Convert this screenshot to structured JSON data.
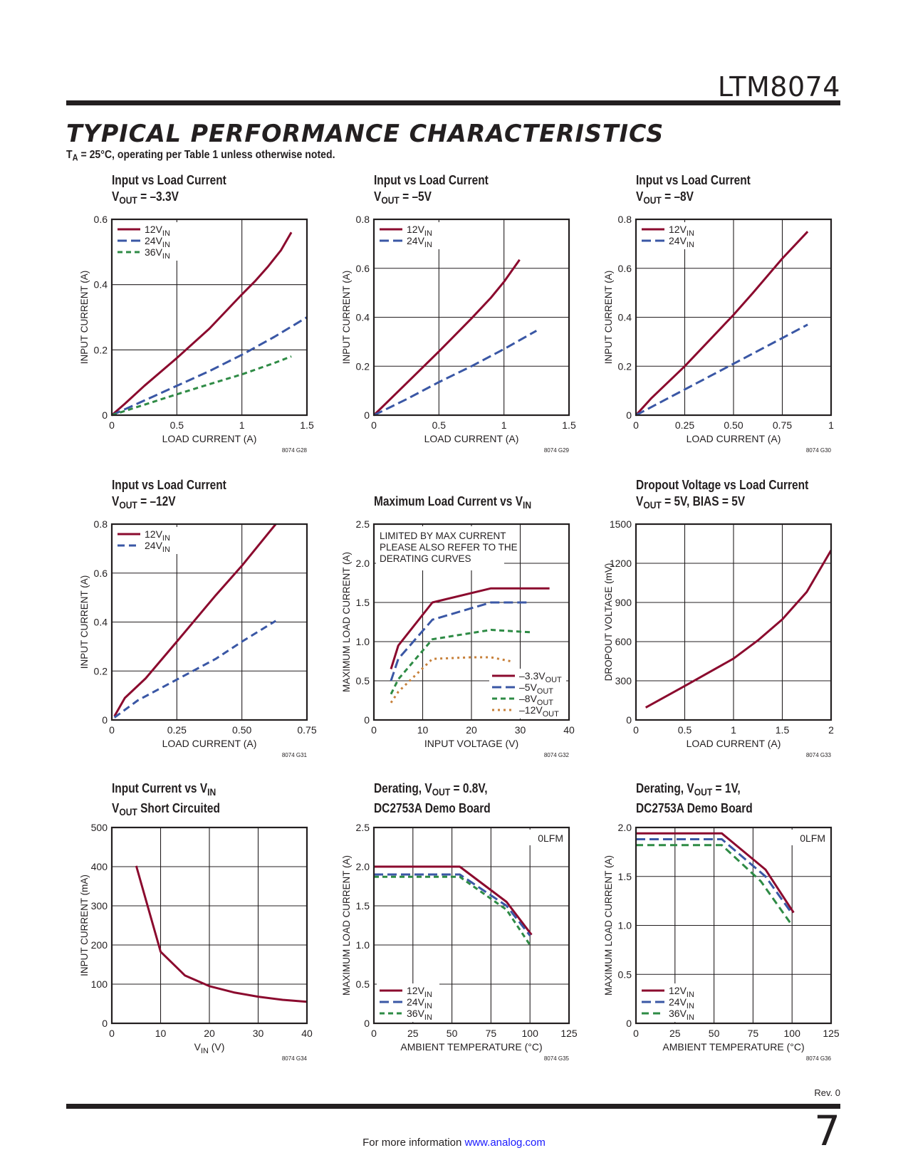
{
  "header": {
    "part_number": "LTM8074",
    "section_title": "TYPICAL PERFORMANCE CHARACTERISTICS",
    "conditions_prefix": "T",
    "conditions_sub": "A",
    "conditions_rest": " = 25°C, operating per Table 1 unless otherwise noted."
  },
  "footer": {
    "rev": "Rev. 0",
    "page_number": "7",
    "info_text": "For more information",
    "info_link": "www.analog.com"
  },
  "colors": {
    "red": "#8b0a2e",
    "blue": "#3a57a5",
    "green": "#2e8b45",
    "orange": "#c7803a",
    "ink": "#231f20"
  },
  "chart_data": [
    {
      "id": "g28",
      "type": "line",
      "title_lines": [
        [
          {
            "t": "Input vs Load Current"
          }
        ],
        [
          {
            "t": "V"
          },
          {
            "t": "OUT",
            "sub": true
          },
          {
            "t": " = –3.3V"
          }
        ]
      ],
      "xlabel": [
        {
          "t": "LOAD CURRENT (A)"
        }
      ],
      "ylabel": "INPUT CURRENT (A)",
      "xlim": [
        0,
        1.5
      ],
      "ylim": [
        0,
        0.6
      ],
      "xticks": [
        0,
        0.5,
        1,
        1.5
      ],
      "xtick_labels": [
        "0",
        "0.5",
        "1",
        "1.5"
      ],
      "yticks": [
        0,
        0.2,
        0.4,
        0.6
      ],
      "ytick_labels": [
        "0",
        "0.2",
        "0.4",
        "0.6"
      ],
      "grid": true,
      "legend_position": "top-left",
      "figure_code": "8074 G28",
      "series": [
        {
          "name": "12V",
          "sub": "IN",
          "color": "red",
          "dash": "solid",
          "x": [
            0,
            0.1,
            0.25,
            0.5,
            0.75,
            1.0,
            1.1,
            1.2,
            1.3,
            1.38
          ],
          "y": [
            0,
            0.035,
            0.09,
            0.175,
            0.265,
            0.37,
            0.41,
            0.455,
            0.505,
            0.56
          ]
        },
        {
          "name": "24V",
          "sub": "IN",
          "color": "blue",
          "dash": "long",
          "x": [
            0,
            0.25,
            0.5,
            0.75,
            1.0,
            1.25,
            1.5
          ],
          "y": [
            0,
            0.045,
            0.09,
            0.135,
            0.185,
            0.24,
            0.3
          ]
        },
        {
          "name": "36V",
          "sub": "IN",
          "color": "green",
          "dash": "short",
          "x": [
            0,
            0.25,
            0.5,
            0.75,
            1.0,
            1.25,
            1.38
          ],
          "y": [
            0,
            0.032,
            0.064,
            0.095,
            0.125,
            0.16,
            0.18
          ]
        }
      ]
    },
    {
      "id": "g29",
      "type": "line",
      "title_lines": [
        [
          {
            "t": "Input vs Load Current"
          }
        ],
        [
          {
            "t": "V"
          },
          {
            "t": "OUT",
            "sub": true
          },
          {
            "t": " = –5V"
          }
        ]
      ],
      "xlabel": [
        {
          "t": "LOAD CURRENT (A)"
        }
      ],
      "ylabel": "INPUT CURRENT (A)",
      "xlim": [
        0,
        1.5
      ],
      "ylim": [
        0,
        0.8
      ],
      "xticks": [
        0,
        0.5,
        1,
        1.5
      ],
      "xtick_labels": [
        "0",
        "0.5",
        "1",
        "1.5"
      ],
      "yticks": [
        0,
        0.2,
        0.4,
        0.6,
        0.8
      ],
      "ytick_labels": [
        "0",
        "0.2",
        "0.4",
        "0.6",
        "0.8"
      ],
      "grid": true,
      "legend_position": "top-left",
      "figure_code": "8074 G29",
      "series": [
        {
          "name": "12V",
          "sub": "IN",
          "color": "red",
          "dash": "solid",
          "x": [
            0,
            0.25,
            0.5,
            0.75,
            0.9,
            1.0,
            1.12
          ],
          "y": [
            0,
            0.13,
            0.26,
            0.395,
            0.48,
            0.545,
            0.635
          ]
        },
        {
          "name": "24V",
          "sub": "IN",
          "color": "blue",
          "dash": "long",
          "x": [
            0,
            0.25,
            0.5,
            0.75,
            1.0,
            1.25
          ],
          "y": [
            0,
            0.065,
            0.135,
            0.2,
            0.27,
            0.345
          ]
        }
      ]
    },
    {
      "id": "g30",
      "type": "line",
      "title_lines": [
        [
          {
            "t": "Input vs Load Current"
          }
        ],
        [
          {
            "t": "V"
          },
          {
            "t": "OUT",
            "sub": true
          },
          {
            "t": " = –8V"
          }
        ]
      ],
      "xlabel": [
        {
          "t": "LOAD CURRENT (A)"
        }
      ],
      "ylabel": "INPUT CURRENT (A)",
      "xlim": [
        0,
        1
      ],
      "ylim": [
        0,
        0.8
      ],
      "xticks": [
        0,
        0.25,
        0.5,
        0.75,
        1
      ],
      "xtick_labels": [
        "0",
        "0.25",
        "0.50",
        "0.75",
        "1"
      ],
      "yticks": [
        0,
        0.2,
        0.4,
        0.6,
        0.8
      ],
      "ytick_labels": [
        "0",
        "0.2",
        "0.4",
        "0.6",
        "0.8"
      ],
      "grid": true,
      "legend_position": "top-left",
      "figure_code": "8074 G30",
      "series": [
        {
          "name": "12V",
          "sub": "IN",
          "color": "red",
          "dash": "solid",
          "x": [
            0,
            0.08,
            0.25,
            0.5,
            0.6,
            0.75,
            0.88
          ],
          "y": [
            0,
            0.07,
            0.2,
            0.41,
            0.5,
            0.64,
            0.75
          ]
        },
        {
          "name": "24V",
          "sub": "IN",
          "color": "blue",
          "dash": "long",
          "x": [
            0,
            0.25,
            0.5,
            0.75,
            0.88
          ],
          "y": [
            0,
            0.105,
            0.21,
            0.315,
            0.37
          ]
        }
      ]
    },
    {
      "id": "g31",
      "type": "line",
      "title_lines": [
        [
          {
            "t": "Input vs Load Current"
          }
        ],
        [
          {
            "t": "V"
          },
          {
            "t": "OUT",
            "sub": true
          },
          {
            "t": " = –12V"
          }
        ]
      ],
      "xlabel": [
        {
          "t": "LOAD CURRENT (A)"
        }
      ],
      "ylabel": "INPUT CURRENT (A)",
      "xlim": [
        0,
        0.75
      ],
      "ylim": [
        0,
        0.8
      ],
      "xticks": [
        0,
        0.25,
        0.5,
        0.75
      ],
      "xtick_labels": [
        "0",
        "0.25",
        "0.50",
        "0.75"
      ],
      "yticks": [
        0,
        0.2,
        0.4,
        0.6,
        0.8
      ],
      "ytick_labels": [
        "0",
        "0.2",
        "0.4",
        "0.6",
        "0.8"
      ],
      "grid": true,
      "legend_position": "top-left",
      "figure_code": "8074 G31",
      "series": [
        {
          "name": "12V",
          "sub": "IN",
          "color": "red",
          "dash": "solid",
          "x": [
            0.01,
            0.05,
            0.13,
            0.25,
            0.4,
            0.5,
            0.63
          ],
          "y": [
            0.015,
            0.09,
            0.17,
            0.32,
            0.51,
            0.63,
            0.8
          ]
        },
        {
          "name": "24V",
          "sub": "IN",
          "color": "blue",
          "dash": "medium",
          "x": [
            0.01,
            0.1,
            0.25,
            0.4,
            0.5,
            0.63
          ],
          "y": [
            0.01,
            0.08,
            0.165,
            0.25,
            0.32,
            0.405
          ]
        }
      ]
    },
    {
      "id": "g32",
      "type": "line",
      "title_lines": [
        [
          {
            "t": ""
          }
        ],
        [
          {
            "t": "Maximum Load Current vs V"
          },
          {
            "t": "IN",
            "sub": true
          }
        ]
      ],
      "xlabel": [
        {
          "t": "INPUT VOLTAGE (V)"
        }
      ],
      "ylabel": "MAXIMUM LOAD CURRENT (A)",
      "xlim": [
        0,
        40
      ],
      "ylim": [
        0,
        2.5
      ],
      "xticks": [
        0,
        10,
        20,
        30,
        40
      ],
      "xtick_labels": [
        "0",
        "10",
        "20",
        "30",
        "40"
      ],
      "yticks": [
        0,
        0.5,
        1.0,
        1.5,
        2.0,
        2.5
      ],
      "ytick_labels": [
        "0",
        "0.5",
        "1.0",
        "1.5",
        "2.0",
        "2.5"
      ],
      "grid": true,
      "legend_position": "bottom-right",
      "annotation_lines": [
        "LIMITED BY MAX CURRENT",
        "PLEASE ALSO REFER TO THE",
        "DERATING CURVES"
      ],
      "figure_code": "8074 G32",
      "series": [
        {
          "name": "–3.3V",
          "sub": "OUT",
          "color": "red",
          "dash": "solid",
          "x": [
            3.5,
            5,
            12,
            24,
            36
          ],
          "y": [
            0.65,
            0.95,
            1.5,
            1.68,
            1.68
          ]
        },
        {
          "name": "–5V",
          "sub": "OUT",
          "color": "blue",
          "dash": "long",
          "x": [
            3.5,
            5,
            12,
            24,
            32
          ],
          "y": [
            0.5,
            0.78,
            1.28,
            1.5,
            1.5
          ]
        },
        {
          "name": "–8V",
          "sub": "OUT",
          "color": "green",
          "dash": "short",
          "x": [
            3.5,
            5,
            12,
            24,
            32
          ],
          "y": [
            0.33,
            0.52,
            1.03,
            1.15,
            1.12
          ]
        },
        {
          "name": "–12V",
          "sub": "OUT",
          "color": "orange",
          "dash": "dot",
          "x": [
            3.5,
            5,
            12,
            20,
            24,
            28
          ],
          "y": [
            0.22,
            0.36,
            0.78,
            0.8,
            0.8,
            0.75
          ]
        }
      ]
    },
    {
      "id": "g33",
      "type": "line",
      "title_lines": [
        [
          {
            "t": "Dropout Voltage vs Load Current"
          }
        ],
        [
          {
            "t": "V"
          },
          {
            "t": "OUT",
            "sub": true
          },
          {
            "t": " = 5V, BIAS = 5V"
          }
        ]
      ],
      "xlabel": [
        {
          "t": "LOAD CURRENT (A)"
        }
      ],
      "ylabel": "DROPOUT VOLTAGE (mV)",
      "xlim": [
        0,
        2
      ],
      "ylim": [
        0,
        1500
      ],
      "xticks": [
        0,
        0.5,
        1,
        1.5,
        2
      ],
      "xtick_labels": [
        "0",
        "0.5",
        "1",
        "1.5",
        "2"
      ],
      "yticks": [
        0,
        300,
        600,
        900,
        1200,
        1500
      ],
      "ytick_labels": [
        "0",
        "300",
        "600",
        "900",
        "1200",
        "1500"
      ],
      "grid": true,
      "legend_position": "none",
      "figure_code": "8074 G33",
      "series": [
        {
          "name": "Dropout",
          "color": "red",
          "dash": "solid",
          "x": [
            0.1,
            0.5,
            1.0,
            1.25,
            1.5,
            1.75,
            2.0
          ],
          "y": [
            95,
            260,
            470,
            610,
            770,
            980,
            1300
          ]
        }
      ]
    },
    {
      "id": "g34",
      "type": "line",
      "title_lines": [
        [
          {
            "t": "Input Current vs V"
          },
          {
            "t": "IN",
            "sub": true
          }
        ],
        [
          {
            "t": "V"
          },
          {
            "t": "OUT",
            "sub": true
          },
          {
            "t": " Short Circuited"
          }
        ]
      ],
      "xlabel": [
        {
          "t": "V"
        },
        {
          "t": "IN",
          "sub": true
        },
        {
          "t": " (V)"
        }
      ],
      "ylabel": "INPUT CURRENT (mA)",
      "xlim": [
        0,
        40
      ],
      "ylim": [
        0,
        500
      ],
      "xticks": [
        0,
        10,
        20,
        30,
        40
      ],
      "xtick_labels": [
        "0",
        "10",
        "20",
        "30",
        "40"
      ],
      "yticks": [
        0,
        100,
        200,
        300,
        400,
        500
      ],
      "ytick_labels": [
        "0",
        "100",
        "200",
        "300",
        "400",
        "500"
      ],
      "grid": true,
      "legend_position": "none",
      "figure_code": "8074 G34",
      "series": [
        {
          "name": "Short circuit",
          "color": "red",
          "dash": "solid",
          "x": [
            5,
            10,
            15,
            20,
            25,
            30,
            35,
            40
          ],
          "y": [
            402,
            183,
            122,
            95,
            79,
            68,
            60,
            55
          ]
        }
      ]
    },
    {
      "id": "g35",
      "type": "line",
      "title_lines": [
        [
          {
            "t": "Derating, V"
          },
          {
            "t": "OUT",
            "sub": true
          },
          {
            "t": " = 0.8V,"
          }
        ],
        [
          {
            "t": "DC2753A Demo Board"
          }
        ]
      ],
      "xlabel": [
        {
          "t": "AMBIENT TEMPERATURE (°C)"
        }
      ],
      "ylabel": "MAXIMUM LOAD CURRENT (A)",
      "xlim": [
        0,
        125
      ],
      "ylim": [
        0,
        2.5
      ],
      "xticks": [
        0,
        25,
        50,
        75,
        100,
        125
      ],
      "xtick_labels": [
        "0",
        "25",
        "50",
        "75",
        "100",
        "125"
      ],
      "yticks": [
        0,
        0.5,
        1.0,
        1.5,
        2.0,
        2.5
      ],
      "ytick_labels": [
        "0",
        "0.5",
        "1.0",
        "1.5",
        "2.0",
        "2.5"
      ],
      "grid": true,
      "legend_position": "bottom-left",
      "corner_note": "0LFM",
      "figure_code": "8074 G35",
      "series": [
        {
          "name": "12V",
          "sub": "IN",
          "color": "red",
          "dash": "solid",
          "x": [
            0,
            55,
            85,
            101
          ],
          "y": [
            2.0,
            2.0,
            1.55,
            1.13
          ]
        },
        {
          "name": "24V",
          "sub": "IN",
          "color": "blue",
          "dash": "long",
          "x": [
            0,
            55,
            85,
            100
          ],
          "y": [
            1.9,
            1.9,
            1.5,
            1.12
          ]
        },
        {
          "name": "36V",
          "sub": "IN",
          "color": "green",
          "dash": "short",
          "x": [
            0,
            55,
            85,
            100
          ],
          "y": [
            1.87,
            1.87,
            1.45,
            1.0
          ]
        }
      ]
    },
    {
      "id": "g36",
      "type": "line",
      "title_lines": [
        [
          {
            "t": "Derating, V"
          },
          {
            "t": "OUT",
            "sub": true
          },
          {
            "t": " = 1V,"
          }
        ],
        [
          {
            "t": "DC2753A Demo Board"
          }
        ]
      ],
      "xlabel": [
        {
          "t": "AMBIENT TEMPERATURE (°C)"
        }
      ],
      "ylabel": "MAXIMUM LOAD CURRENT (A)",
      "xlim": [
        0,
        125
      ],
      "ylim": [
        0,
        2.0
      ],
      "xticks": [
        0,
        25,
        50,
        75,
        100,
        125
      ],
      "xtick_labels": [
        "0",
        "25",
        "50",
        "75",
        "100",
        "125"
      ],
      "yticks": [
        0,
        0.5,
        1.0,
        1.5,
        2.0
      ],
      "ytick_labels": [
        "0",
        "0.5",
        "1.0",
        "1.5",
        "2.0"
      ],
      "grid": true,
      "legend_position": "bottom-left",
      "corner_note": "0LFM",
      "figure_code": "8074 G36",
      "series": [
        {
          "name": "12V",
          "sub": "IN",
          "color": "red",
          "dash": "solid",
          "x": [
            0,
            55,
            83,
            101
          ],
          "y": [
            1.94,
            1.94,
            1.57,
            1.13
          ]
        },
        {
          "name": "24V",
          "sub": "IN",
          "color": "blue",
          "dash": "long",
          "x": [
            0,
            55,
            83,
            100
          ],
          "y": [
            1.88,
            1.88,
            1.5,
            1.12
          ]
        },
        {
          "name": "36V",
          "sub": "IN",
          "color": "green",
          "dash": "medium",
          "x": [
            0,
            55,
            80,
            100
          ],
          "y": [
            1.82,
            1.82,
            1.45,
            1.0
          ]
        }
      ]
    }
  ]
}
